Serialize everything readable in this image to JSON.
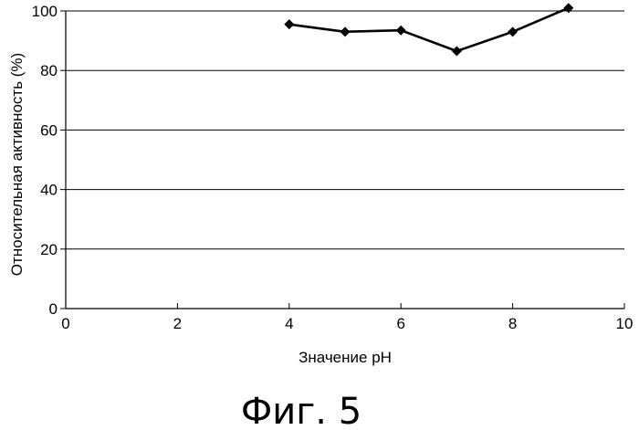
{
  "chart_data": {
    "type": "line",
    "title": "",
    "xlabel": "Значение pH",
    "ylabel": "Относительная активность (%)",
    "xlim": [
      0,
      10
    ],
    "ylim": [
      0,
      100
    ],
    "x_ticks": [
      "0",
      "2",
      "4",
      "6",
      "8",
      "10"
    ],
    "y_ticks": [
      "0",
      "20",
      "40",
      "60",
      "80",
      "100"
    ],
    "grid": "horizontal",
    "legend": "none",
    "series": [
      {
        "marker": "diamond",
        "color": "#000000",
        "points": [
          {
            "x": 4,
            "y": 95.5
          },
          {
            "x": 5,
            "y": 93
          },
          {
            "x": 6,
            "y": 93.5
          },
          {
            "x": 7,
            "y": 86.5
          },
          {
            "x": 8,
            "y": 93
          },
          {
            "x": 9,
            "y": 101
          }
        ]
      }
    ]
  },
  "figure": {
    "caption": "Фиг. 5"
  }
}
